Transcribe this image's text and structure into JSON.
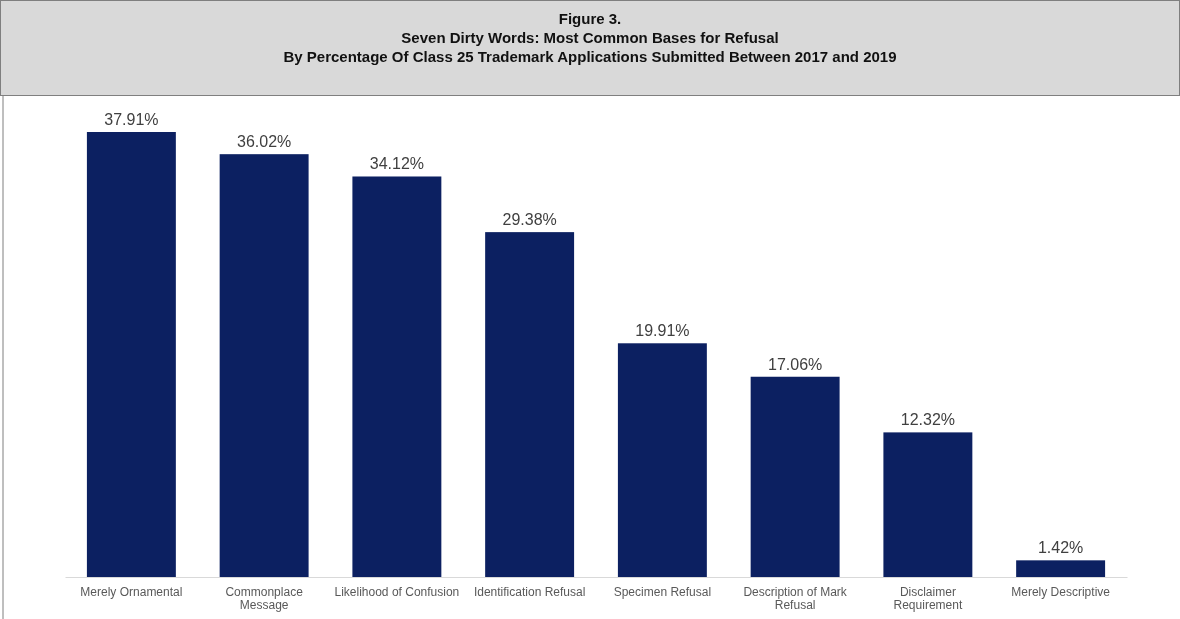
{
  "chart_data": {
    "type": "bar",
    "title": "Figure 3.\nSeven Dirty Words: Most Common Bases for Refusal\nBy Percentage Of Class 25 Trademark Applications Submitted Between 2017 and 2019",
    "categories": [
      "Merely Ornamental",
      "Commonplace Message",
      "Likelihood of Confusion",
      "Identification Refusal",
      "Specimen Refusal",
      "Description of Mark Refusal",
      "Disclaimer Requirement",
      "Merely Descriptive"
    ],
    "values": [
      37.91,
      36.02,
      34.12,
      29.38,
      19.91,
      17.06,
      12.32,
      1.42
    ],
    "value_labels": [
      "37.91%",
      "36.02%",
      "34.12%",
      "29.38%",
      "19.91%",
      "17.06%",
      "12.32%",
      "1.42%"
    ],
    "color": "#0c2061"
  }
}
